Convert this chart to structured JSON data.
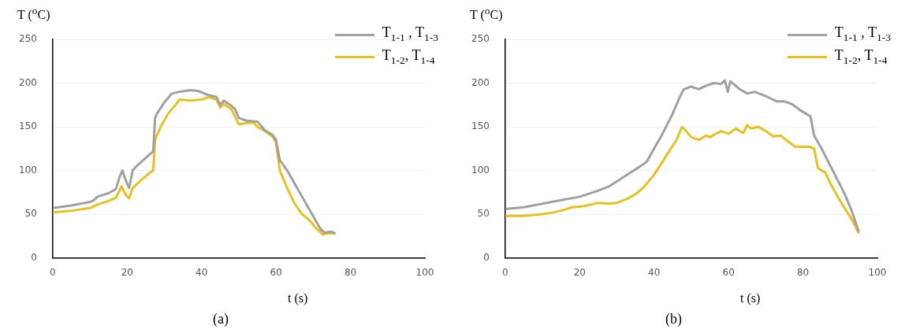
{
  "chart_data": [
    {
      "type": "line",
      "xlabel": "t (s)",
      "ylabel": "T ($^{o}$C)",
      "annotations": [
        "(a)"
      ],
      "legend": "top right",
      "grid": "y",
      "xlim": [
        0,
        100
      ],
      "ylim": [
        0,
        250
      ],
      "xticks": [
        0,
        20,
        40,
        60,
        80,
        100
      ],
      "yticks": [
        0,
        50,
        100,
        150,
        200,
        250
      ],
      "series": [
        {
          "name": "T$_{1-1}$ , T$_{1-3}$",
          "color": "#a0a0a0",
          "x": [
            0,
            5,
            10,
            11,
            12,
            15,
            17,
            18,
            18.7,
            19.5,
            20.5,
            21.5,
            22.5,
            27,
            27.5,
            28,
            30,
            32,
            34,
            37,
            39,
            42,
            44,
            45,
            46,
            48,
            49,
            50,
            52,
            55,
            57,
            59,
            60,
            61,
            63,
            65,
            67,
            69,
            71,
            72,
            73,
            75,
            76
          ],
          "values": [
            57,
            60,
            64,
            66,
            70,
            74,
            79,
            93,
            100,
            90,
            80,
            100,
            105,
            122,
            160,
            165,
            178,
            188,
            190,
            192,
            191,
            186,
            184,
            175,
            180,
            174,
            170,
            160,
            157,
            156,
            146,
            141,
            135,
            112,
            100,
            85,
            70,
            55,
            40,
            33,
            29,
            30,
            28
          ]
        },
        {
          "name": "T$_{1-2}$, T$_{1-4}$",
          "color": "#e8c020",
          "x": [
            0,
            5,
            10,
            12,
            15,
            17,
            18.5,
            19.5,
            20.5,
            21.5,
            24,
            26,
            27,
            27.5,
            29,
            31,
            33,
            34,
            37,
            40,
            42,
            44,
            45,
            46,
            48,
            50,
            52,
            54,
            55,
            57,
            59,
            60,
            61,
            63,
            65,
            67,
            69,
            71,
            72.5,
            74,
            76
          ],
          "values": [
            52,
            54,
            57,
            61,
            65,
            69,
            82,
            73,
            68,
            80,
            90,
            97,
            100,
            135,
            150,
            165,
            175,
            181,
            180,
            181,
            184,
            181,
            172,
            176,
            170,
            153,
            154,
            155,
            150,
            145,
            139,
            132,
            100,
            80,
            62,
            50,
            43,
            33,
            27,
            28,
            28
          ]
        }
      ]
    },
    {
      "type": "line",
      "xlabel": "t (s)",
      "ylabel": "T ($^{o}$C)",
      "annotations": [
        "(b)"
      ],
      "legend": "top right",
      "grid": "y",
      "xlim": [
        0,
        100
      ],
      "ylim": [
        0,
        250
      ],
      "xticks": [
        0,
        20,
        40,
        60,
        80,
        100
      ],
      "yticks": [
        0,
        50,
        100,
        150,
        200,
        250
      ],
      "series": [
        {
          "name": "T$_{1-1}$ , T$_{1-3}$",
          "color": "#a0a0a0",
          "x": [
            0,
            5,
            10,
            15,
            20,
            25,
            28,
            32,
            36,
            38,
            40,
            42,
            45,
            47,
            48,
            50,
            52,
            54,
            56,
            58,
            59,
            59.8,
            60.5,
            63,
            65,
            67,
            70,
            73,
            75,
            77,
            80,
            82,
            83,
            85,
            88,
            91,
            93,
            95
          ],
          "values": [
            56,
            58,
            62,
            66,
            70,
            77,
            82,
            93,
            104,
            110,
            125,
            140,
            165,
            185,
            193,
            196,
            193,
            197,
            200,
            199,
            203,
            190,
            202,
            193,
            188,
            190,
            185,
            179,
            179,
            176,
            167,
            162,
            140,
            125,
            100,
            75,
            55,
            30
          ]
        },
        {
          "name": "T$_{1-2}$, T$_{1-4}$",
          "color": "#e8c020",
          "x": [
            0,
            5,
            10,
            13,
            15,
            18,
            21,
            25,
            28,
            30,
            33,
            35,
            37,
            40,
            43,
            46,
            47.5,
            49,
            50,
            52,
            54,
            55,
            57,
            58,
            60,
            62,
            63,
            64,
            65,
            66,
            68,
            70,
            72,
            74,
            76,
            78,
            82,
            83,
            84,
            85,
            86,
            87,
            90,
            93,
            95
          ],
          "values": [
            48,
            48,
            50,
            52,
            54,
            58,
            59,
            63,
            62,
            63,
            68,
            73,
            80,
            95,
            115,
            135,
            150,
            143,
            138,
            135,
            140,
            138,
            143,
            145,
            142,
            148,
            145,
            143,
            152,
            148,
            150,
            145,
            139,
            140,
            133,
            127,
            127,
            125,
            103,
            100,
            98,
            88,
            65,
            45,
            28
          ]
        }
      ]
    }
  ]
}
